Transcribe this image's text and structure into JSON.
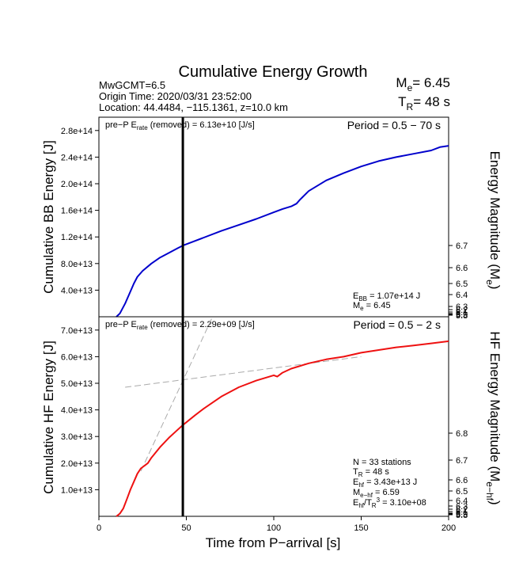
{
  "header": {
    "title": "Cumulative Energy Growth",
    "magnitude_line": "MwGCMT=6.5",
    "origin_time": "Origin Time: 2020/03/31 23:52:00",
    "location": "Location: 44.4484, −115.1361, z=10.0 km",
    "me_label": "M",
    "me_sub": "e",
    "me_value": "= 6.45",
    "tr_label": "T",
    "tr_sub": "R",
    "tr_value": "= 48 s"
  },
  "chart_data": [
    {
      "type": "line",
      "ylabel": "Cumulative BB Energy [J]",
      "y2label": "Energy Magnitude (M",
      "y2label_sub": "e",
      "y2label_end": ")",
      "xlim": [
        0,
        200
      ],
      "ylim": [
        0,
        300000000000000.0
      ],
      "yticks": [
        "4.0e+13",
        "8.0e+13",
        "1.2e+14",
        "1.6e+14",
        "2.0e+14",
        "2.4e+14",
        "2.8e+14"
      ],
      "ytick_values": [
        40000000000000.0,
        80000000000000.0,
        120000000000000.0,
        160000000000000.0,
        200000000000000.0,
        240000000000000.0,
        280000000000000.0
      ],
      "y2ticks": [
        "5.8",
        "5.9",
        "6",
        "6.1",
        "6.2",
        "6.3",
        "6.4",
        "6.5",
        "6.6",
        "6.7"
      ],
      "pre_p_prefix": "pre−P E",
      "pre_p_sub": "rate",
      "pre_p_suffix": " (removed) = 6.13e+10 [J/s]",
      "period": "Period = 0.5 − 70 s",
      "vline_x": 48,
      "annotations": {
        "ebb_prefix": "E",
        "ebb_sub": "BB",
        "ebb_value": " = 1.07e+14 J",
        "me_prefix": "M",
        "me_sub": "e",
        "me_value": " = 6.45"
      },
      "series": [
        {
          "color": "#0000cc",
          "x": [
            10,
            12,
            15,
            18,
            20,
            22,
            25,
            30,
            35,
            40,
            45,
            48,
            55,
            60,
            70,
            80,
            90,
            100,
            105,
            110,
            113,
            115,
            120,
            130,
            140,
            150,
            160,
            170,
            180,
            190,
            195,
            200
          ],
          "y": [
            0,
            5000000000000.0,
            20000000000000.0,
            38000000000000.0,
            50000000000000.0,
            60000000000000.0,
            69000000000000.0,
            80000000000000.0,
            89000000000000.0,
            96000000000000.0,
            103000000000000.0,
            107000000000000.0,
            114000000000000.0,
            119000000000000.0,
            129000000000000.0,
            138000000000000.0,
            147000000000000.0,
            157000000000000.0,
            162000000000000.0,
            166000000000000.0,
            170000000000000.0,
            176000000000000.0,
            189000000000000.0,
            205000000000000.0,
            216000000000000.0,
            226000000000000.0,
            234000000000000.0,
            240000000000000.0,
            245000000000000.0,
            250000000000000.0,
            255000000000000.0,
            257000000000000.0
          ]
        }
      ]
    },
    {
      "type": "line",
      "ylabel": "Cumulative HF Energy [J]",
      "y2label": "HF Energy Magnitude (M",
      "y2label_sub": "e−hf",
      "y2label_end": ")",
      "xlabel": "Time from P−arrival [s]",
      "xlim": [
        0,
        200
      ],
      "ylim": [
        0,
        75000000000000.0
      ],
      "xticks": [
        "0",
        "50",
        "100",
        "150",
        "200"
      ],
      "xtick_values": [
        0,
        50,
        100,
        150,
        200
      ],
      "yticks": [
        "1.0e+13",
        "2.0e+13",
        "3.0e+13",
        "4.0e+13",
        "5.0e+13",
        "6.0e+13",
        "7.0e+13"
      ],
      "ytick_values": [
        10000000000000.0,
        20000000000000.0,
        30000000000000.0,
        40000000000000.0,
        50000000000000.0,
        60000000000000.0,
        70000000000000.0
      ],
      "y2ticks": [
        "5.8",
        "5.9",
        "6",
        "6.1",
        "6.2",
        "6.3",
        "6.4",
        "6.5",
        "6.6",
        "6.7",
        "6.8"
      ],
      "pre_p_prefix": "pre−P E",
      "pre_p_sub": "rate",
      "pre_p_suffix": " (removed) = 2.29e+09 [J/s]",
      "period": "Period = 0.5 − 2 s",
      "vline_x": 48,
      "annotations": {
        "n_stations": "N = 33 stations",
        "tr_prefix": "T",
        "tr_sub": "R",
        "tr_value": " = 48  s",
        "ehf_prefix": "E",
        "ehf_sub": "hf",
        "ehf_value": " = 3.43e+13 J",
        "mehf_prefix": "M",
        "mehf_sub": "e−hf",
        "mehf_value": " = 6.59",
        "ratio_prefix": "E",
        "ratio_sub": "hf",
        "ratio_mid": "/T",
        "ratio_sub2": "R",
        "ratio_sup": "3",
        "ratio_value": "  = 3.10e+08"
      },
      "series": [
        {
          "color": "#ee1111",
          "x": [
            10,
            12,
            14,
            16,
            18,
            20,
            22,
            24,
            26,
            28,
            30,
            35,
            40,
            45,
            48,
            55,
            60,
            70,
            80,
            90,
            100,
            102,
            105,
            110,
            120,
            130,
            140,
            150,
            160,
            170,
            180,
            190,
            200
          ],
          "y": [
            0,
            1000000000000.0,
            3000000000000.0,
            6500000000000.0,
            10000000000000.0,
            13000000000000.0,
            16000000000000.0,
            18000000000000.0,
            19000000000000.0,
            20000000000000.0,
            22000000000000.0,
            26000000000000.0,
            29500000000000.0,
            32500000000000.0,
            34300000000000.0,
            38000000000000.0,
            40500000000000.0,
            45000000000000.0,
            48500000000000.0,
            51000000000000.0,
            53000000000000.0,
            52500000000000.0,
            54000000000000.0,
            55500000000000.0,
            57500000000000.0,
            59000000000000.0,
            60000000000000.0,
            61500000000000.0,
            62500000000000.0,
            63500000000000.0,
            64200000000000.0,
            65000000000000.0,
            65800000000000.0
          ]
        }
      ],
      "fit_lines": [
        {
          "color": "#aaaaaa",
          "x": [
            24,
            65
          ],
          "y": [
            17000000000000.0,
            75000000000000.0
          ]
        },
        {
          "color": "#aaaaaa",
          "x": [
            15,
            150
          ],
          "y": [
            48500000000000.0,
            60000000000000.0
          ]
        }
      ]
    }
  ]
}
